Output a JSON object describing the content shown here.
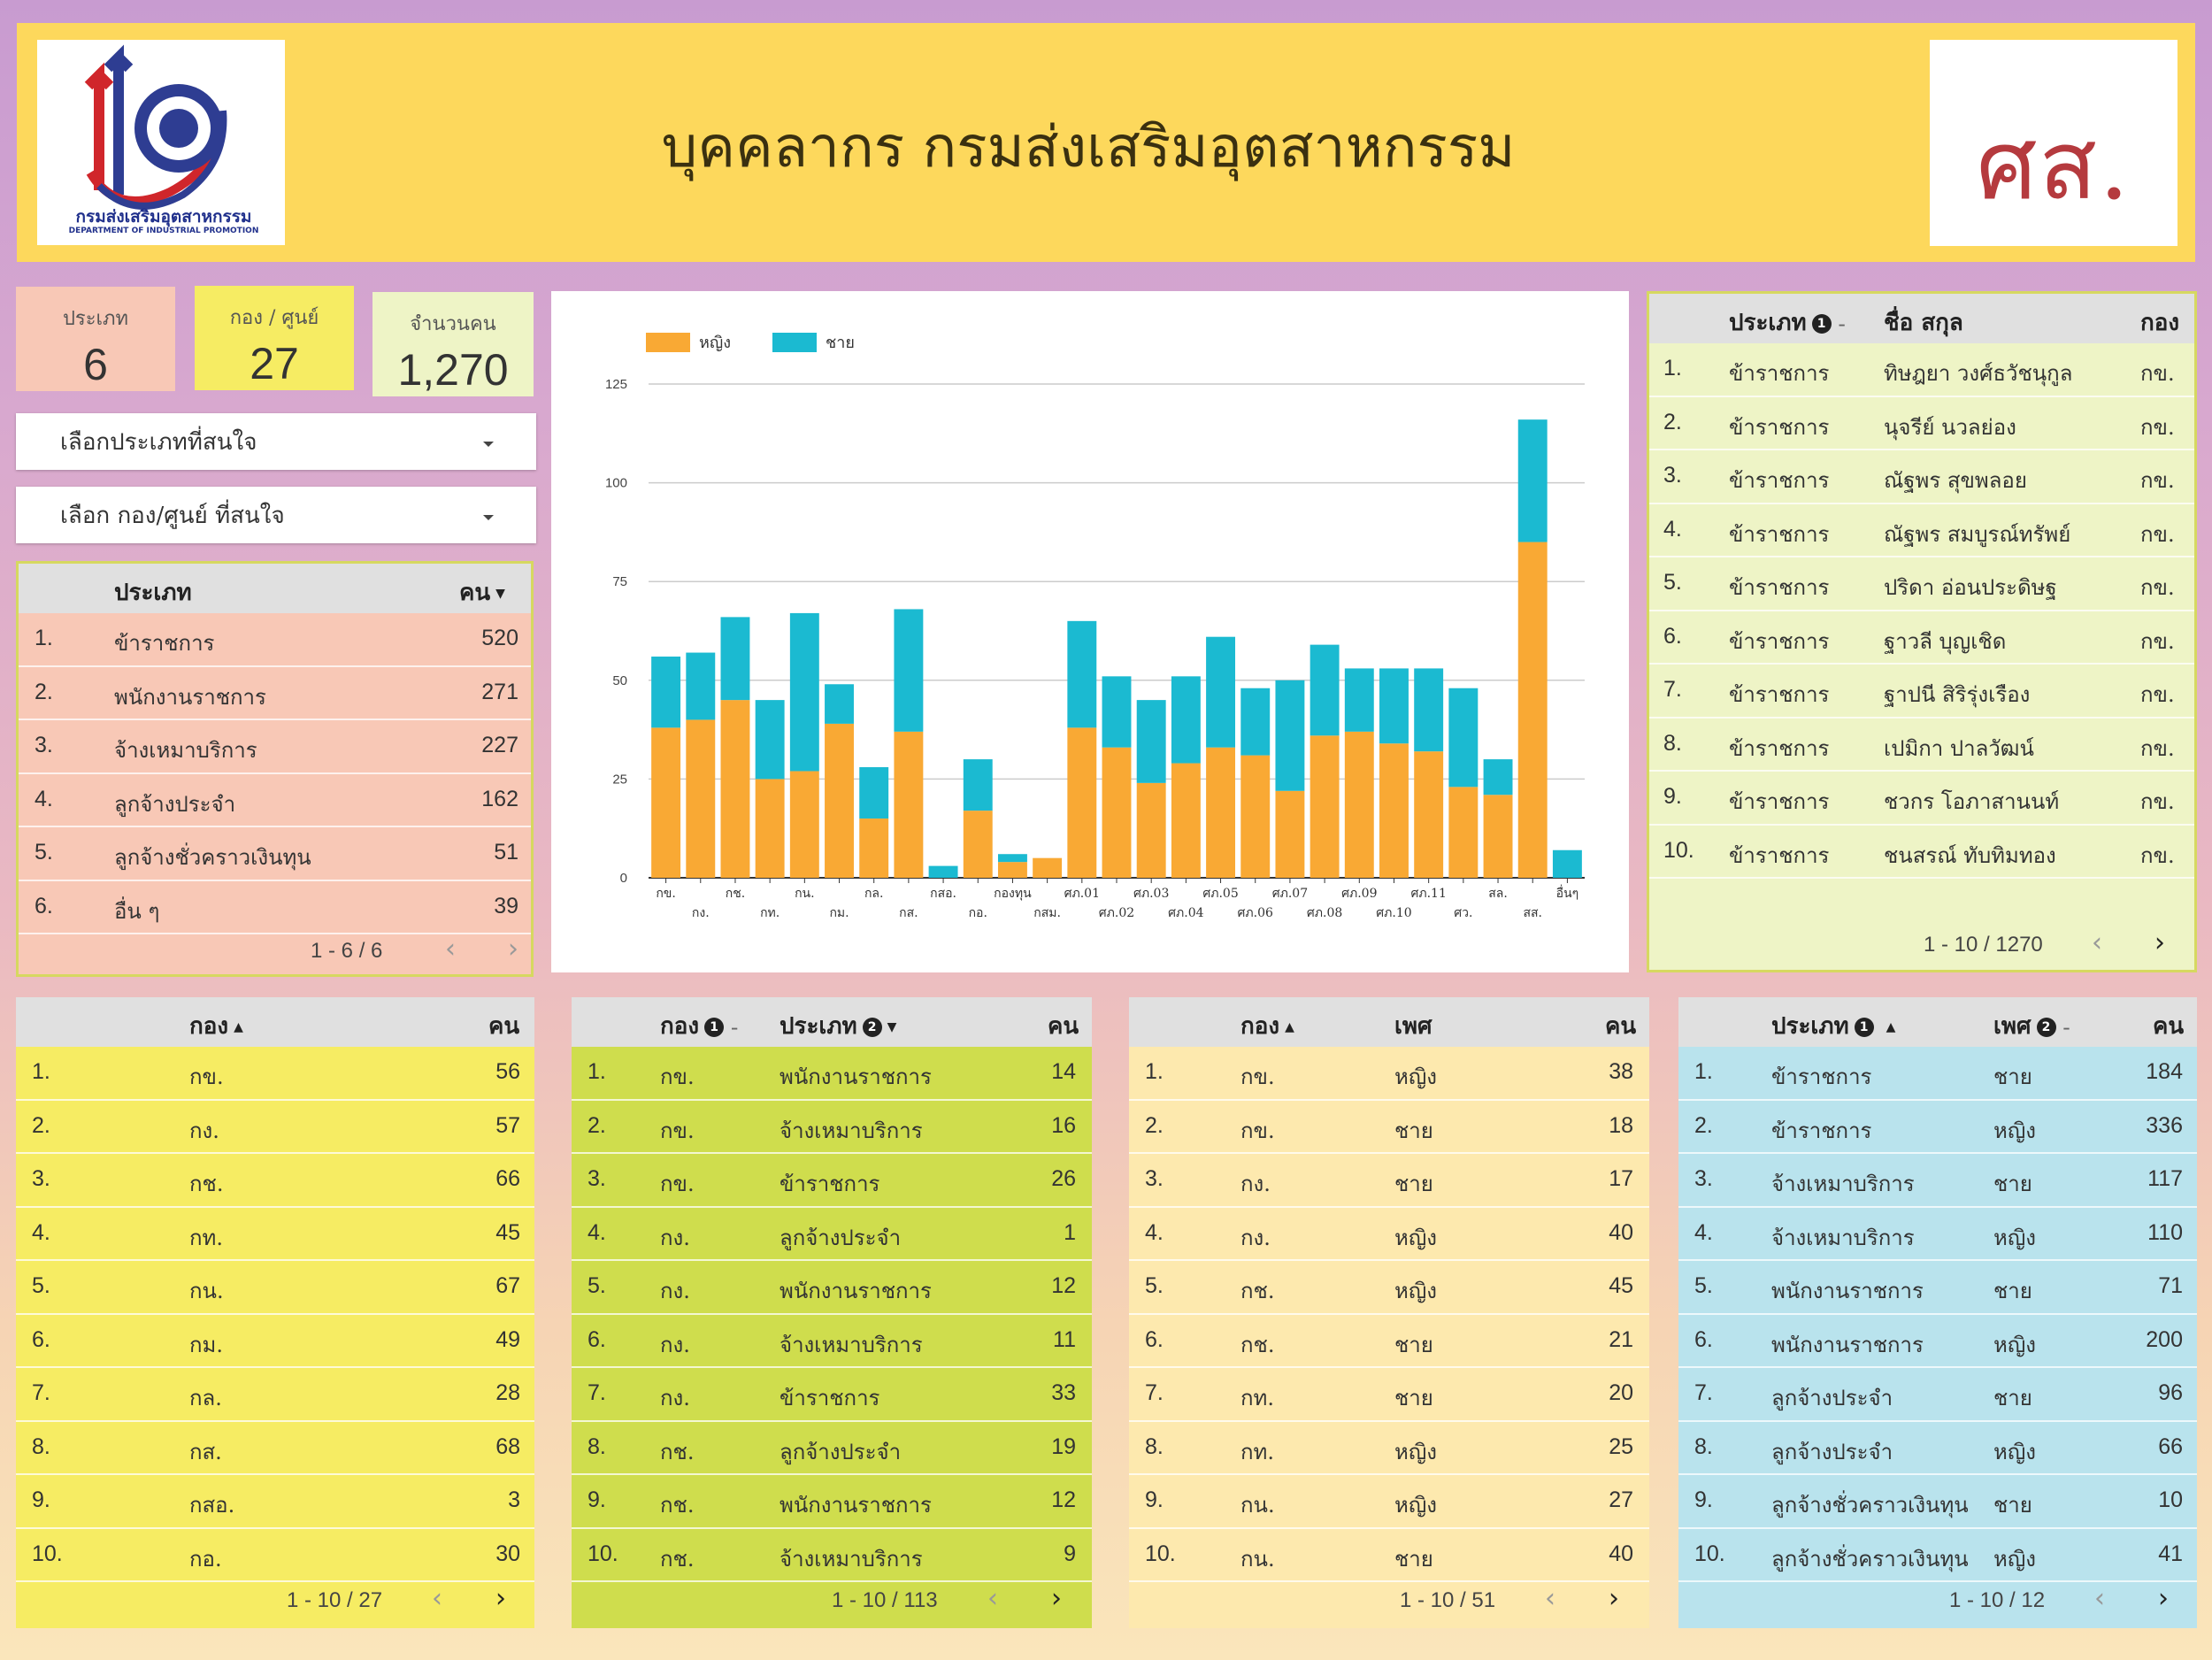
{
  "header": {
    "title": "บุคคลากร กรมส่งเสริมอุตสาหกรรม",
    "logo_text_th": "กรมส่งเสริมอุตสาหกรรม",
    "logo_text_en": "DEPARTMENT OF INDUSTRIAL PROMOTION",
    "abbr": "ศส.",
    "colors": {
      "header_bg": "#fdd85c",
      "abbr_color": "#b53a3e"
    }
  },
  "scorecards": {
    "type": {
      "label": "ประเภท",
      "value": "6"
    },
    "division": {
      "label": "กอง / ศูนย์",
      "value": "27"
    },
    "people": {
      "label": "จำนวนคน",
      "value": "1,270"
    }
  },
  "filters": {
    "type_label": "เลือกประเภทที่สนใจ",
    "division_label": "เลือก กอง/ศูนย์ ที่สนใจ"
  },
  "type_table": {
    "headers": [
      "ประเภท",
      "คน"
    ],
    "rows": [
      {
        "idx": "1.",
        "name": "ข้าราชการ",
        "count": "520"
      },
      {
        "idx": "2.",
        "name": "พนักงานราชการ",
        "count": "271"
      },
      {
        "idx": "3.",
        "name": "จ้างเหมาบริการ",
        "count": "227"
      },
      {
        "idx": "4.",
        "name": "ลูกจ้างประจำ",
        "count": "162"
      },
      {
        "idx": "5.",
        "name": "ลูกจ้างชั่วคราวเงินทุน",
        "count": "51"
      },
      {
        "idx": "6.",
        "name": "อื่น ๆ",
        "count": "39"
      }
    ],
    "pager": "1 - 6 / 6"
  },
  "people_table": {
    "headers": [
      "ประเภท",
      "ชื่อ สกุล",
      "กอง"
    ],
    "rows": [
      {
        "idx": "1.",
        "type": "ข้าราชการ",
        "name": "ทิษฎยา วงศ์ธวัชนุกูล",
        "div": "กข."
      },
      {
        "idx": "2.",
        "type": "ข้าราชการ",
        "name": "นุจรีย์ นวลย่อง",
        "div": "กข."
      },
      {
        "idx": "3.",
        "type": "ข้าราชการ",
        "name": "ณัฐพร สุขพลอย",
        "div": "กข."
      },
      {
        "idx": "4.",
        "type": "ข้าราชการ",
        "name": "ณัฐพร สมบูรณ์ทรัพย์",
        "div": "กข."
      },
      {
        "idx": "5.",
        "type": "ข้าราชการ",
        "name": "ปริดา อ่อนประดิษฐ",
        "div": "กข."
      },
      {
        "idx": "6.",
        "type": "ข้าราชการ",
        "name": "ฐาวลี บุญเชิด",
        "div": "กข."
      },
      {
        "idx": "7.",
        "type": "ข้าราชการ",
        "name": "ฐาปนี สิริรุ่งเรือง",
        "div": "กข."
      },
      {
        "idx": "8.",
        "type": "ข้าราชการ",
        "name": "เปมิกา ปาลวัฒน์",
        "div": "กข."
      },
      {
        "idx": "9.",
        "type": "ข้าราชการ",
        "name": "ชวกร โอภาสานนท์",
        "div": "กข."
      },
      {
        "idx": "10.",
        "type": "ข้าราชการ",
        "name": "ชนสรณ์ ทับทิมทอง",
        "div": "กข."
      }
    ],
    "pager": "1 - 10 / 1270"
  },
  "division_table": {
    "headers": [
      "กอง",
      "คน"
    ],
    "rows": [
      {
        "idx": "1.",
        "div": "กข.",
        "count": "56"
      },
      {
        "idx": "2.",
        "div": "กง.",
        "count": "57"
      },
      {
        "idx": "3.",
        "div": "กช.",
        "count": "66"
      },
      {
        "idx": "4.",
        "div": "กท.",
        "count": "45"
      },
      {
        "idx": "5.",
        "div": "กน.",
        "count": "67"
      },
      {
        "idx": "6.",
        "div": "กม.",
        "count": "49"
      },
      {
        "idx": "7.",
        "div": "กล.",
        "count": "28"
      },
      {
        "idx": "8.",
        "div": "กส.",
        "count": "68"
      },
      {
        "idx": "9.",
        "div": "กสอ.",
        "count": "3"
      },
      {
        "idx": "10.",
        "div": "กอ.",
        "count": "30"
      }
    ],
    "pager": "1 - 10 / 27"
  },
  "div_type_table": {
    "headers": [
      "กอง",
      "ประเภท",
      "คน"
    ],
    "rows": [
      {
        "idx": "1.",
        "div": "กข.",
        "type": "พนักงานราชการ",
        "count": "14"
      },
      {
        "idx": "2.",
        "div": "กข.",
        "type": "จ้างเหมาบริการ",
        "count": "16"
      },
      {
        "idx": "3.",
        "div": "กข.",
        "type": "ข้าราชการ",
        "count": "26"
      },
      {
        "idx": "4.",
        "div": "กง.",
        "type": "ลูกจ้างประจำ",
        "count": "1"
      },
      {
        "idx": "5.",
        "div": "กง.",
        "type": "พนักงานราชการ",
        "count": "12"
      },
      {
        "idx": "6.",
        "div": "กง.",
        "type": "จ้างเหมาบริการ",
        "count": "11"
      },
      {
        "idx": "7.",
        "div": "กง.",
        "type": "ข้าราชการ",
        "count": "33"
      },
      {
        "idx": "8.",
        "div": "กช.",
        "type": "ลูกจ้างประจำ",
        "count": "19"
      },
      {
        "idx": "9.",
        "div": "กช.",
        "type": "พนักงานราชการ",
        "count": "12"
      },
      {
        "idx": "10.",
        "div": "กช.",
        "type": "จ้างเหมาบริการ",
        "count": "9"
      }
    ],
    "pager": "1 - 10 / 113"
  },
  "div_sex_table": {
    "headers": [
      "กอง",
      "เพศ",
      "คน"
    ],
    "rows": [
      {
        "idx": "1.",
        "div": "กข.",
        "sex": "หญิง",
        "count": "38"
      },
      {
        "idx": "2.",
        "div": "กข.",
        "sex": "ชาย",
        "count": "18"
      },
      {
        "idx": "3.",
        "div": "กง.",
        "sex": "ชาย",
        "count": "17"
      },
      {
        "idx": "4.",
        "div": "กง.",
        "sex": "หญิง",
        "count": "40"
      },
      {
        "idx": "5.",
        "div": "กช.",
        "sex": "หญิง",
        "count": "45"
      },
      {
        "idx": "6.",
        "div": "กช.",
        "sex": "ชาย",
        "count": "21"
      },
      {
        "idx": "7.",
        "div": "กท.",
        "sex": "ชาย",
        "count": "20"
      },
      {
        "idx": "8.",
        "div": "กท.",
        "sex": "หญิง",
        "count": "25"
      },
      {
        "idx": "9.",
        "div": "กน.",
        "sex": "หญิง",
        "count": "27"
      },
      {
        "idx": "10.",
        "div": "กน.",
        "sex": "ชาย",
        "count": "40"
      }
    ],
    "pager": "1 - 10 / 51"
  },
  "type_sex_table": {
    "headers": [
      "ประเภท",
      "เพศ",
      "คน"
    ],
    "rows": [
      {
        "idx": "1.",
        "type": "ข้าราชการ",
        "sex": "ชาย",
        "count": "184"
      },
      {
        "idx": "2.",
        "type": "ข้าราชการ",
        "sex": "หญิง",
        "count": "336"
      },
      {
        "idx": "3.",
        "type": "จ้างเหมาบริการ",
        "sex": "ชาย",
        "count": "117"
      },
      {
        "idx": "4.",
        "type": "จ้างเหมาบริการ",
        "sex": "หญิง",
        "count": "110"
      },
      {
        "idx": "5.",
        "type": "พนักงานราชการ",
        "sex": "ชาย",
        "count": "71"
      },
      {
        "idx": "6.",
        "type": "พนักงานราชการ",
        "sex": "หญิง",
        "count": "200"
      },
      {
        "idx": "7.",
        "type": "ลูกจ้างประจำ",
        "sex": "ชาย",
        "count": "96"
      },
      {
        "idx": "8.",
        "type": "ลูกจ้างประจำ",
        "sex": "หญิง",
        "count": "66"
      },
      {
        "idx": "9.",
        "type": "ลูกจ้างชั่วคราวเงินทุน",
        "sex": "ชาย",
        "count": "10"
      },
      {
        "idx": "10.",
        "type": "ลูกจ้างชั่วคราวเงินทุน",
        "sex": "หญิง",
        "count": "41"
      }
    ],
    "pager": "1 - 10 / 12"
  },
  "chart_data": {
    "type": "bar",
    "stacked": true,
    "categories": [
      "กข.",
      "กง.",
      "กช.",
      "กท.",
      "กน.",
      "กม.",
      "กล.",
      "กส.",
      "กสอ.",
      "กอ.",
      "กองทุน",
      "กสม.",
      "ศภ.01",
      "ศภ.02",
      "ศภ.03",
      "ศภ.04",
      "ศภ.05",
      "ศภ.06",
      "ศภ.07",
      "ศภ.08",
      "ศภ.09",
      "ศภ.10",
      "ศภ.11",
      "ศว.",
      "สล.",
      "สส.",
      "อื่นๆ"
    ],
    "tick_labels_row1": [
      "กข.",
      "",
      "กช.",
      "",
      "กน.",
      "",
      "กล.",
      "",
      "กสอ.",
      "",
      "กองทุน",
      "",
      "ศภ.01",
      "",
      "ศภ.03",
      "",
      "ศภ.05",
      "",
      "ศภ.07",
      "",
      "ศภ.09",
      "",
      "ศภ.11",
      "",
      "สล.",
      "",
      "อื่นๆ"
    ],
    "tick_labels_row2": [
      "",
      "กง.",
      "",
      "กท.",
      "",
      "กม.",
      "",
      "กส.",
      "",
      "กอ.",
      "",
      "กสม.",
      "",
      "ศภ.02",
      "",
      "ศภ.04",
      "",
      "ศภ.06",
      "",
      "ศภ.08",
      "",
      "ศภ.10",
      "",
      "ศว.",
      "",
      "สส.",
      ""
    ],
    "series": [
      {
        "name": "หญิง",
        "color": "#f9a934",
        "values": [
          38,
          40,
          45,
          25,
          27,
          39,
          15,
          37,
          0,
          17,
          4,
          5,
          38,
          33,
          24,
          29,
          33,
          31,
          22,
          36,
          37,
          34,
          32,
          23,
          21,
          85,
          0
        ]
      },
      {
        "name": "ชาย",
        "color": "#1bbad1",
        "values": [
          18,
          17,
          21,
          20,
          40,
          10,
          13,
          31,
          3,
          13,
          2,
          0,
          27,
          18,
          21,
          22,
          28,
          17,
          28,
          23,
          16,
          19,
          21,
          25,
          9,
          31,
          7
        ]
      }
    ],
    "ylim": [
      0,
      125
    ],
    "yticks": [
      0,
      25,
      50,
      75,
      100,
      125
    ],
    "xlabel": "",
    "ylabel": "",
    "grid": true,
    "legend_placement": "top-left"
  }
}
